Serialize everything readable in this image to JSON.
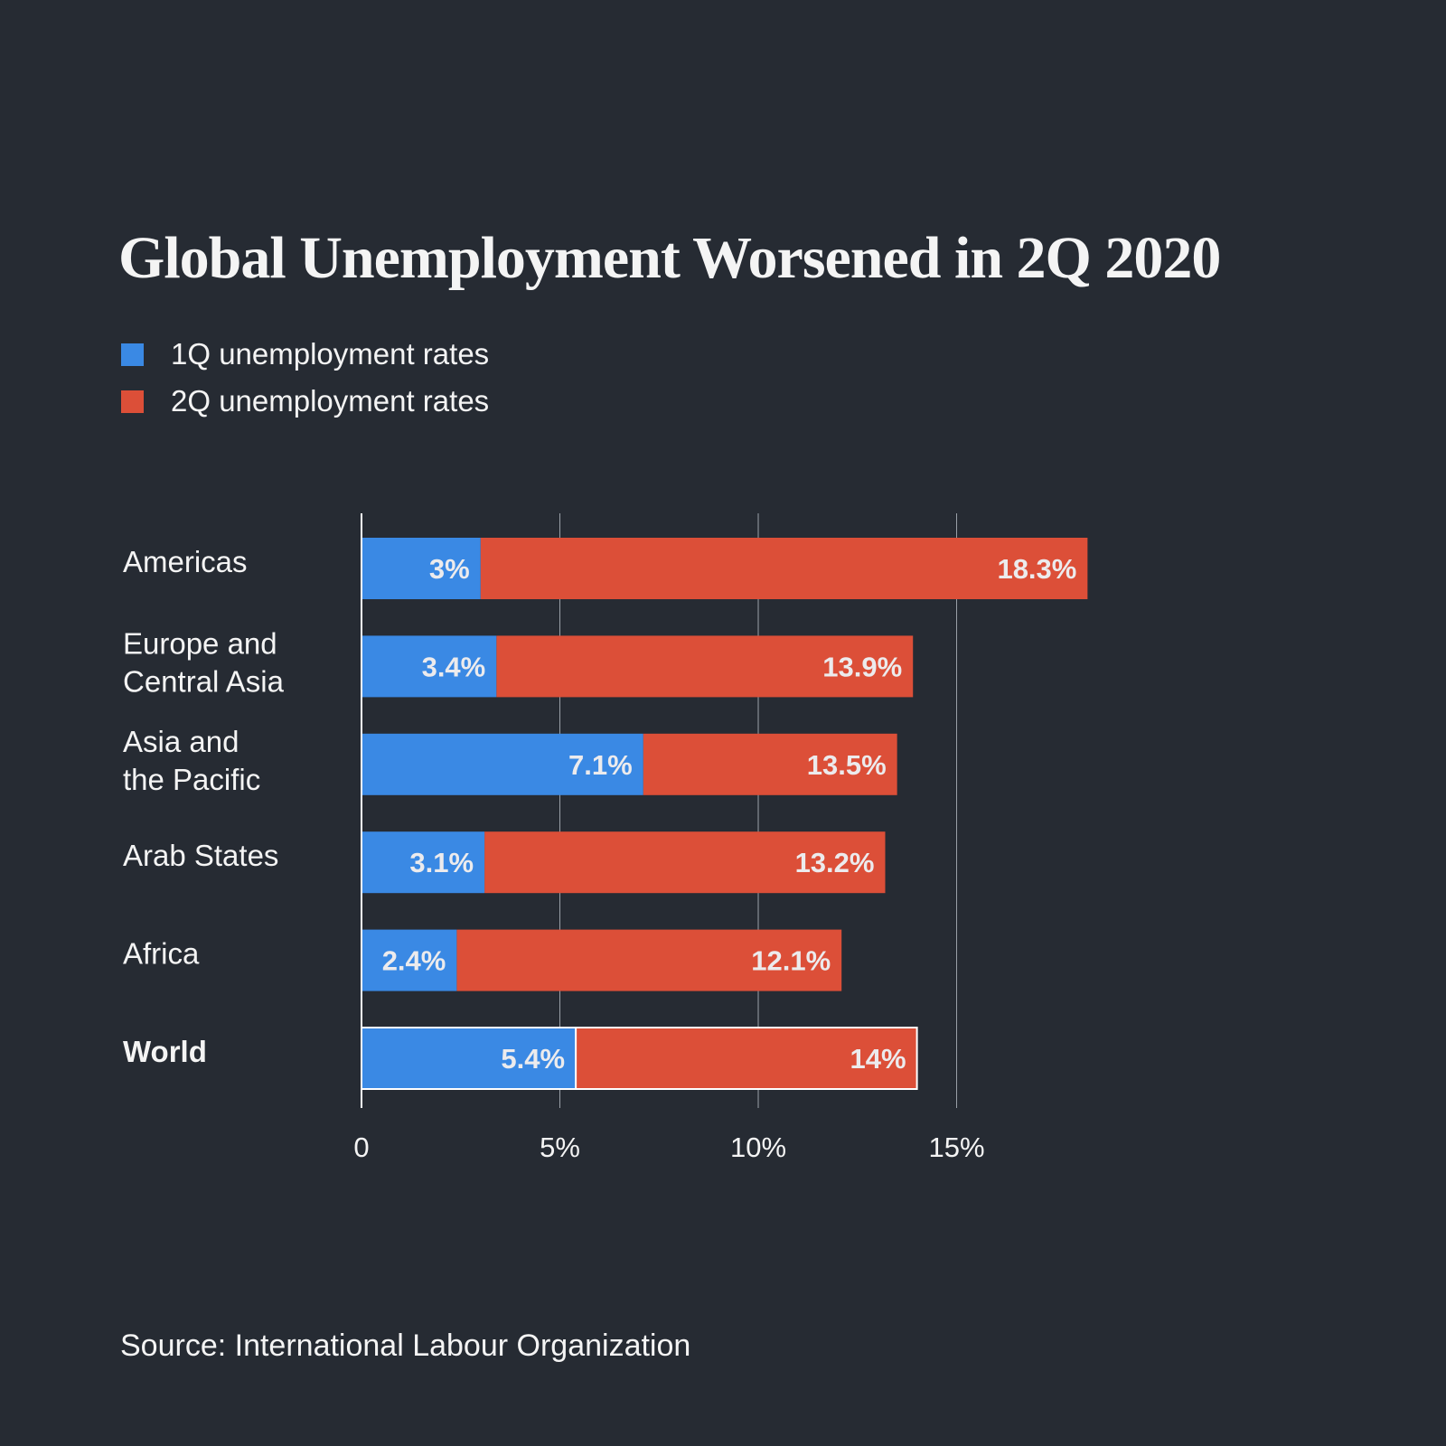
{
  "chart_data": {
    "type": "bar",
    "orientation": "horizontal",
    "stacking": "overlapping-from-zero",
    "title": "Global Unemployment Worsened in 2Q 2020",
    "categories": [
      {
        "lines": [
          "Americas"
        ],
        "bold": false
      },
      {
        "lines": [
          "Europe and",
          "Central Asia"
        ],
        "bold": false
      },
      {
        "lines": [
          "Asia and",
          "the Pacific"
        ],
        "bold": false
      },
      {
        "lines": [
          "Arab States"
        ],
        "bold": false
      },
      {
        "lines": [
          "Africa"
        ],
        "bold": false
      },
      {
        "lines": [
          "World"
        ],
        "bold": true
      }
    ],
    "series": [
      {
        "name": "1Q unemployment rates",
        "color": "#3a89e4",
        "values": [
          3,
          3.4,
          7.1,
          3.1,
          2.4,
          5.4
        ],
        "labels": [
          "3%",
          "3.4%",
          "7.1%",
          "3.1%",
          "2.4%",
          "5.4%"
        ]
      },
      {
        "name": "2Q unemployment rates",
        "color": "#dc4f38",
        "values": [
          18.3,
          13.9,
          13.5,
          13.2,
          12.1,
          14
        ],
        "labels": [
          "18.3%",
          "13.9%",
          "13.5%",
          "13.2%",
          "12.1%",
          "14%"
        ]
      }
    ],
    "x_ticks": [
      0,
      5,
      10,
      15
    ],
    "x_tick_labels": [
      "0",
      "5%",
      "10%",
      "15%"
    ],
    "xlim": [
      0,
      18.3
    ],
    "xlabel": "",
    "ylabel": "",
    "grid": true,
    "highlight_category": "World",
    "legend_position": "top-left"
  },
  "source": "Source: International Labour Organization"
}
